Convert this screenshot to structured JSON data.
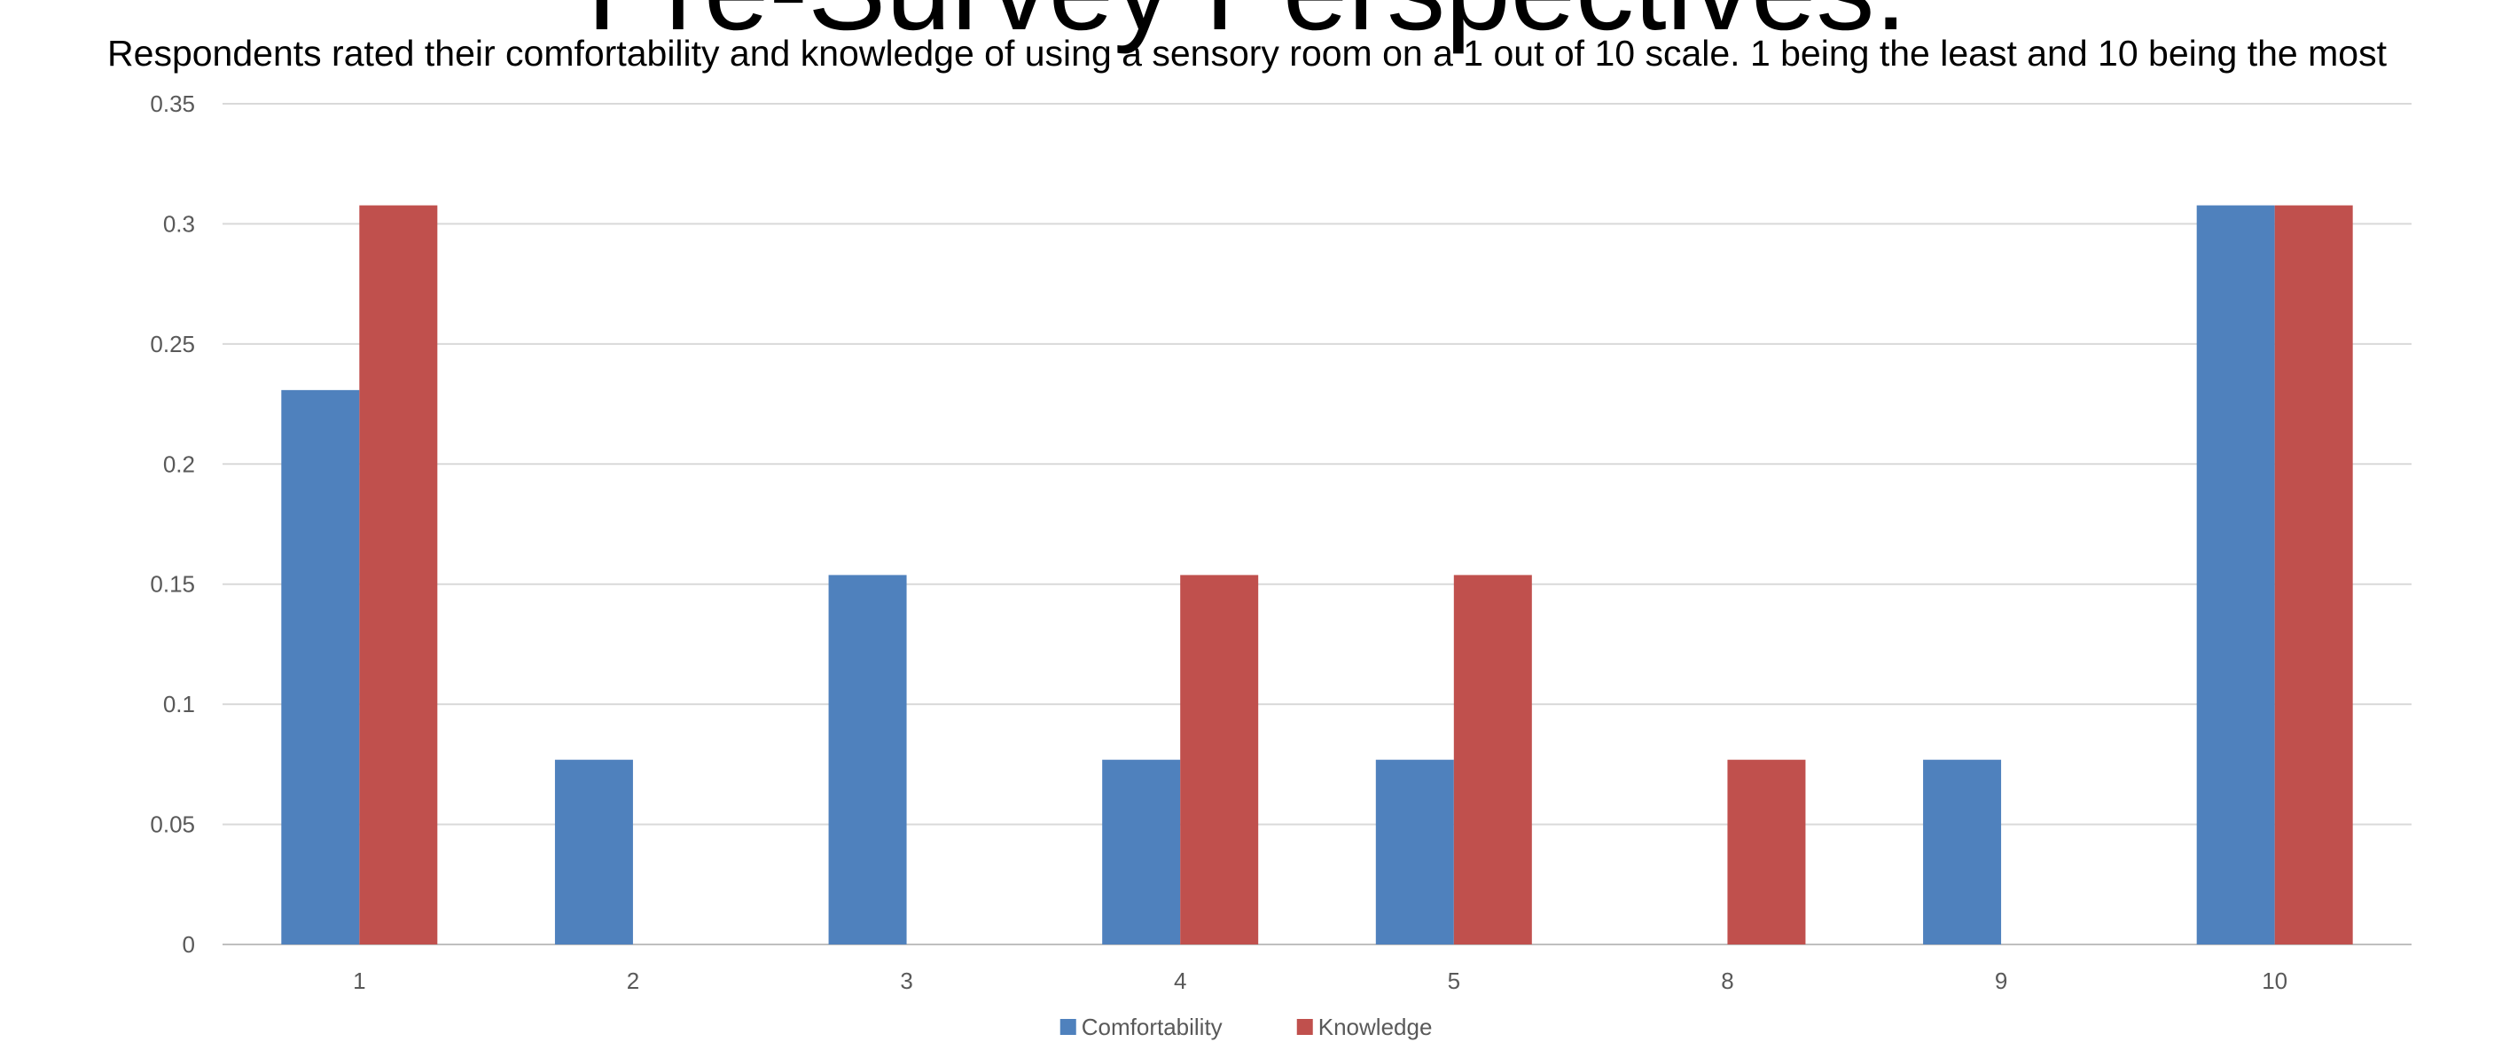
{
  "title": "Pre-Survey Perspectives:",
  "subtitle": "Respondents rated their comfortability and knowledge of using a sensory room on a 1 out of 10 scale. 1 being the least and 10 being the most",
  "chart_data": {
    "type": "bar",
    "categories": [
      "1",
      "2",
      "3",
      "4",
      "5",
      "8",
      "9",
      "10"
    ],
    "series": [
      {
        "name": "Comfortability",
        "color": "#4F81BD",
        "values": [
          0.2308,
          0.0769,
          0.1538,
          0.0769,
          0.0769,
          0,
          0.0769,
          0.3077
        ]
      },
      {
        "name": "Knowledge",
        "color": "#C0504D",
        "values": [
          0.3077,
          0,
          0,
          0.1538,
          0.1538,
          0.0769,
          0,
          0.3077
        ]
      }
    ],
    "ylim": [
      0,
      0.35
    ],
    "yticks": [
      "0",
      "0.05",
      "0.1",
      "0.15",
      "0.2",
      "0.25",
      "0.3",
      "0.35"
    ],
    "grid": true,
    "legend": "bottom-center",
    "xlabel": "",
    "ylabel": ""
  }
}
